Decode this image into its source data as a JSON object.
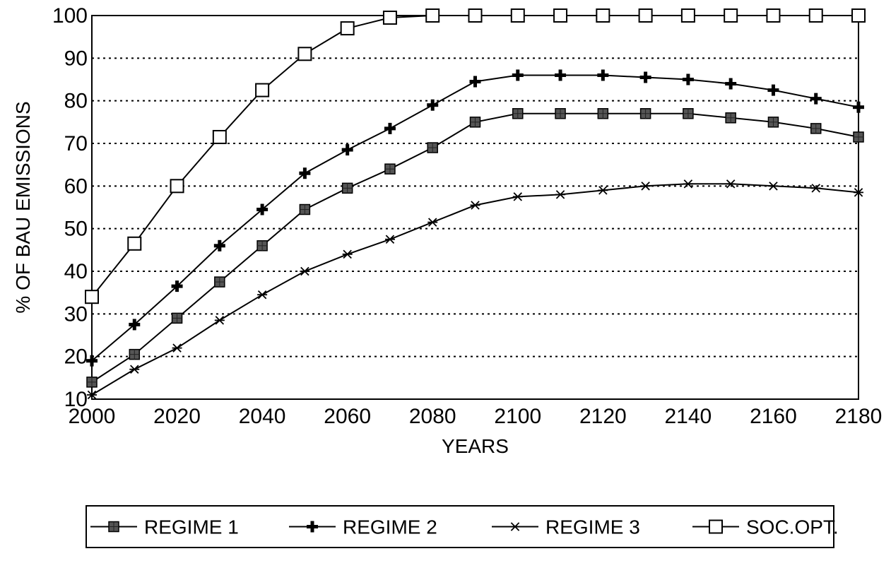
{
  "chart_data": {
    "type": "line",
    "title": "",
    "xlabel": "YEARS",
    "ylabel": "% OF BAU EMISSIONS",
    "xlim": [
      2000,
      2180
    ],
    "ylim": [
      10,
      100
    ],
    "xticks": [
      "2000",
      "2020",
      "2040",
      "2060",
      "2080",
      "2100",
      "2120",
      "2140",
      "2160",
      "2180"
    ],
    "yticks": [
      "10",
      "20",
      "30",
      "40",
      "50",
      "60",
      "70",
      "80",
      "90",
      "100"
    ],
    "grid": "horizontal-dotted",
    "legend_position": "bottom",
    "x": [
      2000,
      2010,
      2020,
      2030,
      2040,
      2050,
      2060,
      2070,
      2080,
      2090,
      2100,
      2110,
      2120,
      2130,
      2140,
      2150,
      2160,
      2170,
      2180
    ],
    "series": [
      {
        "name": "REGIME 1",
        "marker": "filled-square",
        "values": [
          14,
          20.5,
          29,
          37.5,
          46,
          54.5,
          59.5,
          64,
          69,
          75,
          77,
          77,
          77,
          77,
          77,
          76,
          75,
          73.5,
          71.5
        ]
      },
      {
        "name": "REGIME 2",
        "marker": "plus",
        "values": [
          19,
          27.5,
          36.5,
          46,
          54.5,
          63,
          68.5,
          73.5,
          79,
          84.5,
          86,
          86,
          86,
          85.5,
          85,
          84,
          82.5,
          80.5,
          78.5
        ]
      },
      {
        "name": "REGIME 3",
        "marker": "asterisk",
        "values": [
          11,
          17,
          22,
          28.5,
          34.5,
          40,
          44,
          47.5,
          51.5,
          55.5,
          57.5,
          58,
          59,
          60,
          60.5,
          60.5,
          60,
          59.5,
          58.5
        ]
      },
      {
        "name": "SOC.OPT.",
        "marker": "open-square",
        "values": [
          34,
          46.5,
          60,
          71.5,
          82.5,
          91,
          97,
          99.5,
          100,
          100,
          100,
          100,
          100,
          100,
          100,
          100,
          100,
          100,
          100
        ]
      }
    ]
  }
}
